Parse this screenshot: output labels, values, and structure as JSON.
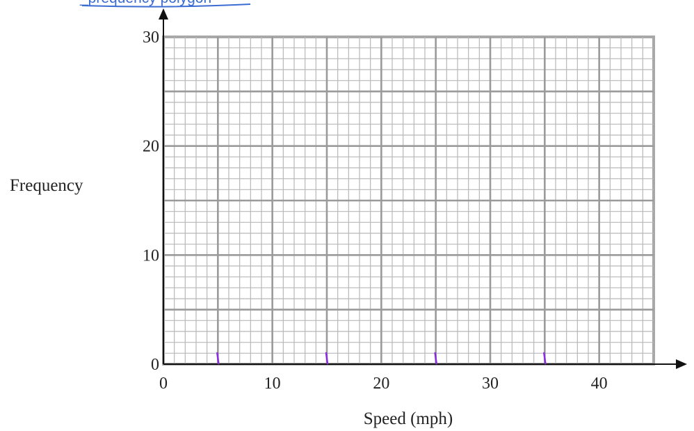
{
  "header": {
    "visible_text": "_prequency polygon",
    "color": "#3b6cd1"
  },
  "chart_data": {
    "type": "line",
    "title": "",
    "xlabel": "Speed (mph)",
    "ylabel": "Frequency",
    "xlim": [
      0,
      45
    ],
    "ylim": [
      0,
      30
    ],
    "x_ticks": [
      0,
      10,
      20,
      30,
      40
    ],
    "y_ticks": [
      0,
      10,
      20,
      30
    ],
    "x_tick_labels": [
      "0",
      "10",
      "20",
      "30",
      "40"
    ],
    "y_tick_labels": [
      "0",
      "10",
      "20",
      "30"
    ],
    "grid": true,
    "grid_fine_step": 1,
    "grid_major_step": 5,
    "axis_arrows": true,
    "marker_ticks": {
      "x": [
        5,
        15,
        25,
        35
      ],
      "color": "#8a2be2",
      "note": ""
    },
    "series": []
  },
  "colors": {
    "grid_fine": "#b8b8b8",
    "grid_major": "#9a9a9a",
    "grid_border": "#a8a8a8",
    "axis": "#111111",
    "text": "#222222"
  }
}
